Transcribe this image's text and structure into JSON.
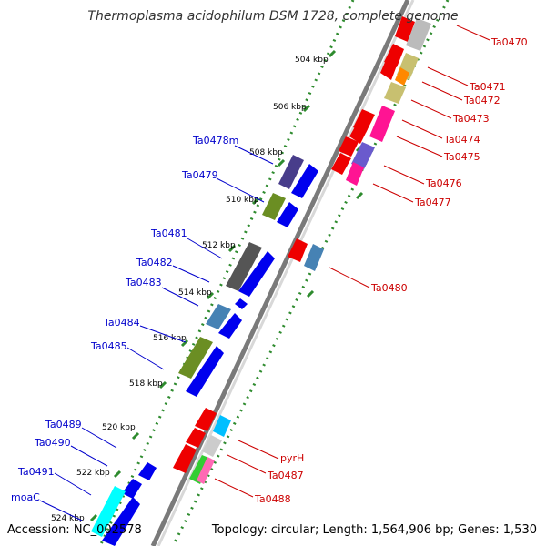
{
  "title": "Thermoplasma acidophilum DSM 1728, complete genome",
  "footer": {
    "accession": "Accession: NC_002578",
    "summary": "Topology: circular; Length: 1,564,906 bp; Genes: 1,530"
  },
  "colors": {
    "minus_strand_label": "#0000cc",
    "plus_strand_label": "#cc0000",
    "tick_green": "#2e8b2e"
  },
  "ticks": [
    "504 kbp",
    "506 kbp",
    "508 kbp",
    "510 kbp",
    "512 kbp",
    "514 kbp",
    "516 kbp",
    "518 kbp",
    "520 kbp",
    "522 kbp",
    "524 kbp"
  ],
  "genes_left": [
    "Ta0478m",
    "Ta0479",
    "Ta0481",
    "Ta0482",
    "Ta0483",
    "Ta0484",
    "Ta0485",
    "Ta0489",
    "Ta0490",
    "Ta0491",
    "moaC"
  ],
  "genes_right": [
    "Ta0470",
    "Ta0471",
    "Ta0472",
    "Ta0473",
    "Ta0474",
    "Ta0475",
    "Ta0476",
    "Ta0477",
    "Ta0480",
    "pyrH",
    "Ta0487",
    "Ta0488"
  ]
}
